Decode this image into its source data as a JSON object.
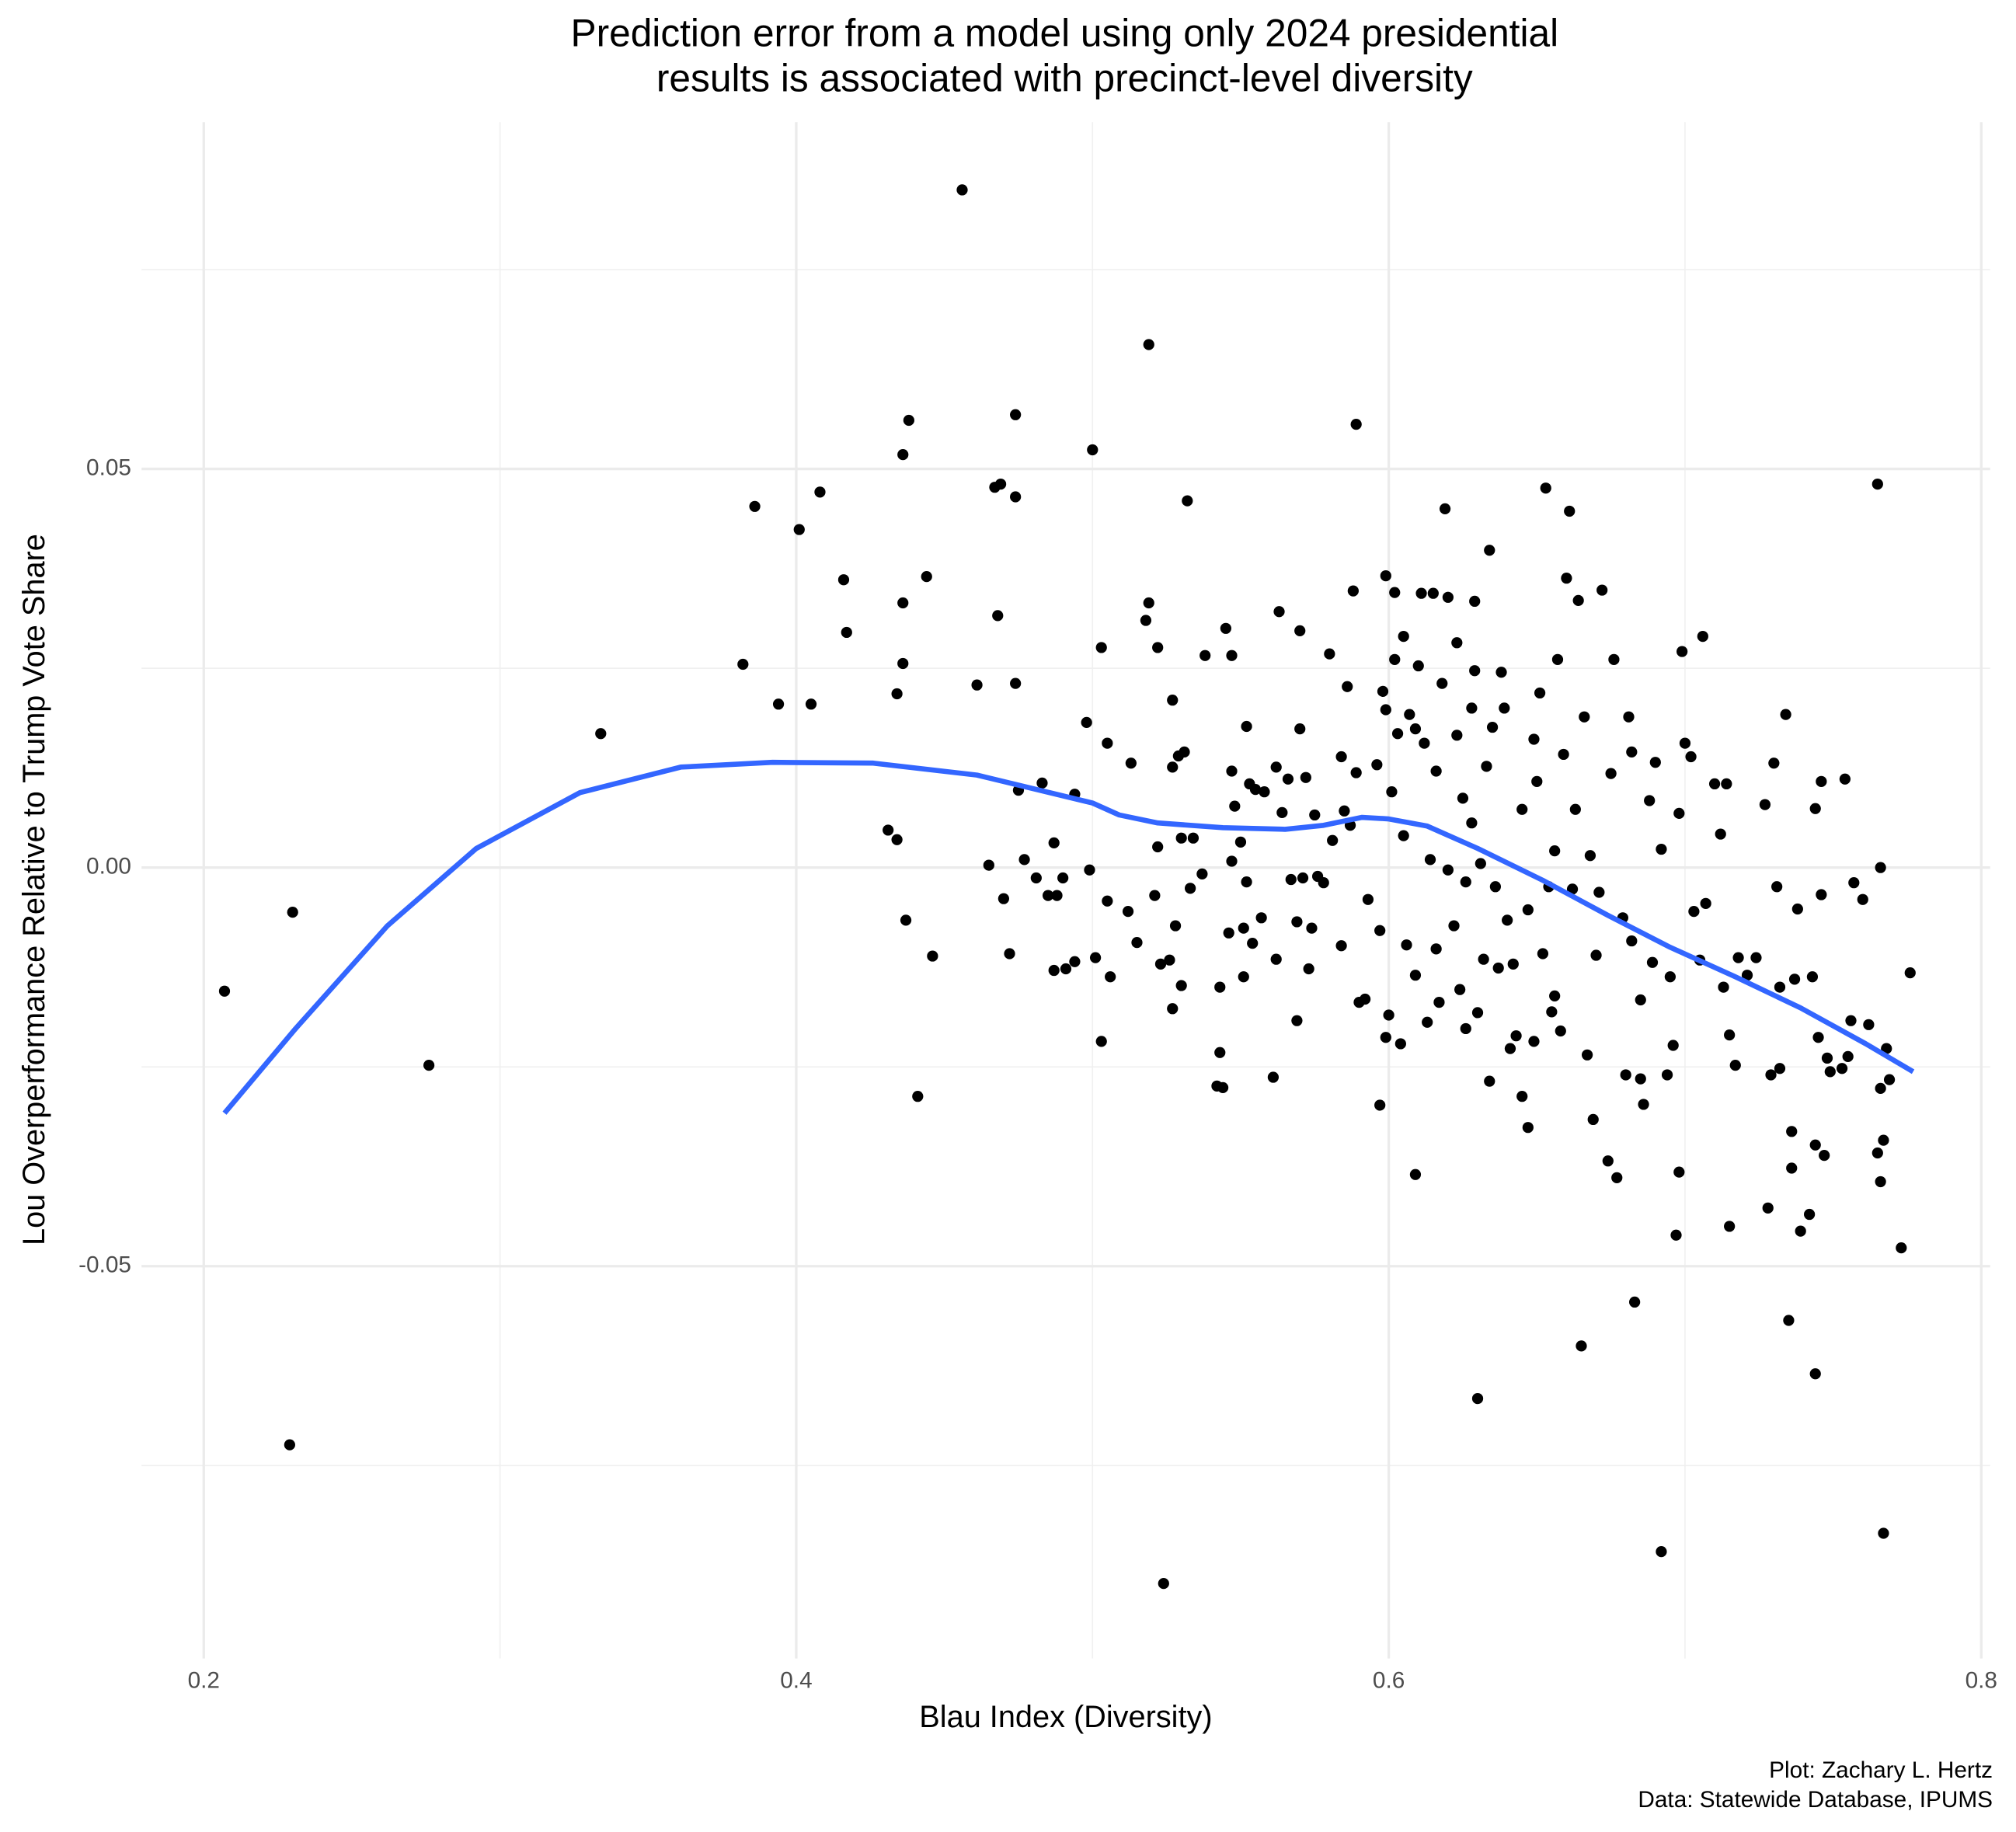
{
  "chart_data": {
    "type": "scatter",
    "title": [
      "Prediction error from a model using only 2024 presidential",
      "results is associated with precinct-level diversity"
    ],
    "x_label": "Blau Index (Diversity)",
    "y_label": "Lou Overperformance Relative to Trump Vote Share",
    "caption": [
      "Plot: Zachary L. Hertz",
      "Data: Statewide Database, IPUMS"
    ],
    "xlim": [
      0.179,
      0.803
    ],
    "ylim": [
      -0.0992,
      0.0935
    ],
    "xticks": [
      0.2,
      0.4,
      0.6,
      0.8
    ],
    "yticks": [
      -0.05,
      {
        "value": 0,
        "label": "0.00"
      },
      0.05
    ],
    "xminor": [
      0.3,
      0.5,
      0.7
    ],
    "yminor": [
      -0.075,
      -0.025,
      0.025,
      0.075
    ],
    "grid": true,
    "points": {
      "color": "#000000",
      "x": [
        0.207,
        0.23,
        0.229,
        0.276,
        0.334,
        0.382,
        0.386,
        0.394,
        0.401,
        0.405,
        0.408,
        0.416,
        0.417,
        0.431,
        0.434,
        0.434,
        0.436,
        0.436,
        0.436,
        0.437,
        0.438,
        0.441,
        0.444,
        0.446,
        0.456,
        0.461,
        0.465,
        0.467,
        0.468,
        0.469,
        0.47,
        0.472,
        0.474,
        0.474,
        0.474,
        0.475,
        0.477,
        0.481,
        0.483,
        0.485,
        0.487,
        0.487,
        0.488,
        0.49,
        0.491,
        0.494,
        0.494,
        0.498,
        0.499,
        0.5,
        0.501,
        0.503,
        0.503,
        0.505,
        0.505,
        0.506,
        0.512,
        0.513,
        0.515,
        0.518,
        0.519,
        0.519,
        0.521,
        0.522,
        0.522,
        0.523,
        0.524,
        0.526,
        0.527,
        0.527,
        0.527,
        0.528,
        0.529,
        0.53,
        0.53,
        0.531,
        0.532,
        0.533,
        0.534,
        0.537,
        0.538,
        0.542,
        0.543,
        0.543,
        0.544,
        0.545,
        0.546,
        0.547,
        0.547,
        0.547,
        0.548,
        0.55,
        0.551,
        0.551,
        0.552,
        0.552,
        0.553,
        0.554,
        0.555,
        0.557,
        0.558,
        0.561,
        0.562,
        0.562,
        0.563,
        0.564,
        0.566,
        0.567,
        0.569,
        0.569,
        0.57,
        0.57,
        0.571,
        0.572,
        0.573,
        0.574,
        0.575,
        0.576,
        0.578,
        0.58,
        0.581,
        0.584,
        0.584,
        0.585,
        0.586,
        0.587,
        0.588,
        0.589,
        0.589,
        0.59,
        0.592,
        0.593,
        0.596,
        0.597,
        0.597,
        0.598,
        0.599,
        0.599,
        0.599,
        0.6,
        0.601,
        0.602,
        0.602,
        0.603,
        0.604,
        0.605,
        0.605,
        0.606,
        0.607,
        0.609,
        0.609,
        0.609,
        0.61,
        0.611,
        0.612,
        0.613,
        0.614,
        0.615,
        0.616,
        0.616,
        0.617,
        0.618,
        0.619,
        0.62,
        0.62,
        0.622,
        0.623,
        0.623,
        0.624,
        0.625,
        0.626,
        0.626,
        0.628,
        0.628,
        0.629,
        0.629,
        0.63,
        0.63,
        0.631,
        0.632,
        0.633,
        0.634,
        0.634,
        0.635,
        0.636,
        0.637,
        0.638,
        0.639,
        0.64,
        0.641,
        0.642,
        0.643,
        0.645,
        0.645,
        0.647,
        0.647,
        0.649,
        0.649,
        0.65,
        0.651,
        0.652,
        0.653,
        0.654,
        0.655,
        0.656,
        0.656,
        0.657,
        0.658,
        0.659,
        0.66,
        0.661,
        0.662,
        0.663,
        0.664,
        0.665,
        0.666,
        0.667,
        0.668,
        0.669,
        0.67,
        0.671,
        0.672,
        0.674,
        0.675,
        0.676,
        0.677,
        0.679,
        0.68,
        0.681,
        0.682,
        0.682,
        0.683,
        0.685,
        0.685,
        0.686,
        0.688,
        0.689,
        0.69,
        0.692,
        0.692,
        0.694,
        0.695,
        0.696,
        0.697,
        0.698,
        0.698,
        0.699,
        0.7,
        0.702,
        0.703,
        0.705,
        0.706,
        0.707,
        0.71,
        0.712,
        0.713,
        0.714,
        0.715,
        0.715,
        0.717,
        0.718,
        0.721,
        0.724,
        0.727,
        0.728,
        0.729,
        0.73,
        0.731,
        0.732,
        0.732,
        0.734,
        0.735,
        0.736,
        0.736,
        0.737,
        0.738,
        0.739,
        0.742,
        0.743,
        0.744,
        0.744,
        0.744,
        0.745,
        0.746,
        0.746,
        0.747,
        0.748,
        0.749,
        0.753,
        0.754,
        0.755,
        0.756,
        0.757,
        0.76,
        0.762,
        0.765,
        0.765,
        0.766,
        0.766,
        0.766,
        0.767,
        0.767,
        0.768,
        0.769,
        0.773,
        0.776
      ],
      "y": [
        -0.0155,
        -0.0056,
        -0.0724,
        -0.0248,
        0.0168,
        0.0255,
        0.0453,
        0.0205,
        0.0424,
        0.0205,
        0.0471,
        0.0361,
        0.0295,
        0.0047,
        0.0035,
        0.0218,
        0.0518,
        0.0332,
        0.0256,
        -0.0066,
        0.0561,
        -0.0287,
        0.0365,
        -0.0111,
        0.085,
        0.0229,
        0.0003,
        0.0477,
        0.0316,
        0.0481,
        -0.0039,
        -0.0108,
        0.0465,
        0.0231,
        0.0568,
        0.0097,
        0.001,
        -0.0013,
        0.0106,
        -0.0035,
        0.0031,
        -0.0129,
        -0.0035,
        -0.0013,
        -0.0127,
        -0.0118,
        0.0092,
        0.0182,
        -0.0003,
        0.0524,
        -0.0113,
        0.0276,
        -0.0218,
        0.0156,
        -0.0042,
        -0.0137,
        -0.0055,
        0.0131,
        -0.0094,
        0.031,
        0.0332,
        0.0656,
        -0.0035,
        0.0026,
        0.0276,
        -0.0121,
        -0.0898,
        -0.0116,
        -0.0177,
        0.021,
        0.0126,
        -0.0073,
        0.014,
        -0.0148,
        0.0037,
        0.0145,
        0.046,
        -0.0026,
        0.0037,
        -0.0008,
        0.0266,
        -0.0274,
        -0.015,
        -0.0232,
        -0.0276,
        0.03,
        -0.0082,
        0.0266,
        0.0008,
        0.0121,
        0.0077,
        0.0032,
        -0.0076,
        -0.0137,
        0.0177,
        -0.0018,
        0.0105,
        -0.0095,
        0.0098,
        -0.0063,
        0.0095,
        -0.0263,
        -0.0115,
        0.0126,
        0.0321,
        0.0069,
        0.0111,
        -0.0015,
        -0.0192,
        -0.0068,
        0.0174,
        0.0297,
        -0.0013,
        0.0113,
        -0.0127,
        -0.0076,
        0.0066,
        -0.0011,
        -0.0019,
        0.0268,
        0.0034,
        -0.0098,
        0.0139,
        0.0071,
        0.0227,
        0.0053,
        0.0347,
        0.0119,
        0.0556,
        -0.0169,
        -0.0165,
        -0.004,
        0.0129,
        -0.0298,
        -0.0079,
        0.0221,
        0.0198,
        0.0366,
        -0.0213,
        -0.0185,
        0.0095,
        0.0261,
        0.0345,
        0.0168,
        -0.0221,
        0.029,
        0.004,
        -0.0097,
        0.0192,
        -0.0385,
        0.0174,
        -0.0135,
        0.0253,
        0.0344,
        0.0156,
        -0.0194,
        0.001,
        0.0344,
        0.0121,
        -0.0102,
        -0.0169,
        0.0231,
        0.045,
        -0.0003,
        0.0339,
        -0.0073,
        0.0282,
        0.0166,
        -0.0153,
        0.0087,
        -0.0202,
        -0.0018,
        0.02,
        0.0056,
        0.0247,
        0.0334,
        -0.0666,
        -0.0182,
        0.0005,
        -0.0115,
        0.0127,
        0.0398,
        -0.0268,
        0.0176,
        -0.0024,
        -0.0126,
        0.0245,
        0.02,
        -0.0066,
        -0.0227,
        -0.0121,
        -0.0211,
        -0.0287,
        0.0073,
        -0.0053,
        -0.0326,
        0.0161,
        -0.0218,
        0.0108,
        0.0219,
        -0.0108,
        0.0476,
        -0.0024,
        -0.0181,
        0.0021,
        -0.0161,
        0.0261,
        -0.0205,
        0.0142,
        0.0363,
        0.0447,
        -0.0027,
        0.0073,
        0.0335,
        -0.06,
        0.0189,
        -0.0235,
        0.0015,
        -0.0316,
        -0.011,
        -0.0031,
        0.0348,
        -0.0368,
        0.0118,
        0.0261,
        -0.0389,
        -0.0063,
        -0.026,
        0.0189,
        -0.0092,
        0.0145,
        -0.0545,
        -0.0265,
        -0.0166,
        -0.0297,
        0.0084,
        -0.0119,
        0.0132,
        -0.0858,
        0.0023,
        -0.026,
        -0.0137,
        -0.0223,
        -0.0461,
        -0.0382,
        0.0068,
        0.0271,
        0.0156,
        0.0139,
        -0.0055,
        -0.0116,
        0.029,
        -0.0045,
        0.0105,
        0.0042,
        -0.015,
        0.0105,
        -0.021,
        -0.045,
        -0.0248,
        -0.0113,
        -0.0135,
        -0.0113,
        0.0079,
        -0.0427,
        -0.026,
        0.0131,
        -0.0024,
        -0.015,
        -0.0252,
        0.0192,
        -0.0568,
        -0.0331,
        -0.0377,
        -0.014,
        -0.0052,
        -0.0456,
        -0.0435,
        -0.0137,
        -0.0635,
        0.0074,
        -0.0348,
        -0.0213,
        0.0108,
        -0.0034,
        -0.0361,
        -0.0239,
        -0.0256,
        -0.0252,
        0.0111,
        -0.0237,
        -0.0192,
        -0.0019,
        -0.004,
        -0.0197,
        -0.0358,
        0.0481,
        -0.0394,
        -0.0277,
        0,
        -0.0342,
        -0.0835,
        -0.0227,
        -0.0266,
        -0.0477,
        -0.0132
      ]
    },
    "smooth": {
      "color": "#3366ff",
      "x": [
        0.207,
        0.231,
        0.262,
        0.292,
        0.327,
        0.361,
        0.392,
        0.426,
        0.461,
        0.5,
        0.509,
        0.522,
        0.544,
        0.565,
        0.578,
        0.591,
        0.6,
        0.613,
        0.63,
        0.652,
        0.674,
        0.695,
        0.717,
        0.739,
        0.761,
        0.777
      ],
      "y": [
        -0.0308,
        -0.0202,
        -0.0073,
        0.0024,
        0.0094,
        0.0126,
        0.0132,
        0.0131,
        0.0116,
        0.0081,
        0.0066,
        0.0056,
        0.005,
        0.0048,
        0.0053,
        0.0063,
        0.0061,
        0.0052,
        0.0024,
        -0.0016,
        -0.006,
        -0.01,
        -0.0137,
        -0.0176,
        -0.0221,
        -0.0256
      ]
    }
  }
}
